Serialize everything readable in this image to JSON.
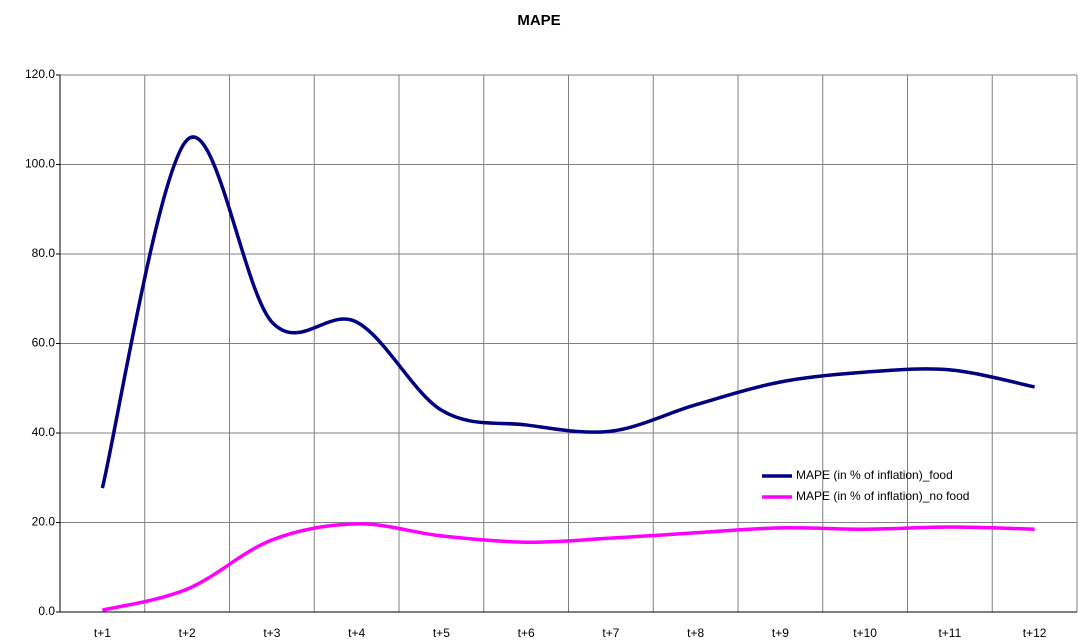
{
  "chart_data": {
    "type": "line",
    "title": "MAPE",
    "categories": [
      "t+1",
      "t+2",
      "t+3",
      "t+4",
      "t+5",
      "t+6",
      "t+7",
      "t+8",
      "t+9",
      "t+10",
      "t+11",
      "t+12"
    ],
    "series": [
      {
        "name": "MAPE (in % of inflation)_food",
        "color": "#000080",
        "values": [
          27.7,
          105.5,
          64.8,
          64.8,
          45.1,
          41.8,
          40.4,
          46.3,
          51.4,
          53.6,
          54.1,
          50.3
        ]
      },
      {
        "name": "MAPE (in % of inflation)_no food",
        "color": "#ff00ff",
        "values": [
          0.4,
          5.1,
          16.1,
          19.7,
          17.0,
          15.6,
          16.5,
          17.7,
          18.8,
          18.5,
          19.0,
          18.5
        ]
      }
    ],
    "ylim": [
      0,
      120
    ],
    "yticks": [
      {
        "value": 0,
        "label": "0.0"
      },
      {
        "value": 20,
        "label": "20.0"
      },
      {
        "value": 40,
        "label": "40.0"
      },
      {
        "value": 60,
        "label": "60.0"
      },
      {
        "value": 80,
        "label": "80.0"
      },
      {
        "value": 100,
        "label": "100.0"
      },
      {
        "value": 120,
        "label": "120.0"
      }
    ],
    "grid": true,
    "smooth": true,
    "legend": "right"
  }
}
